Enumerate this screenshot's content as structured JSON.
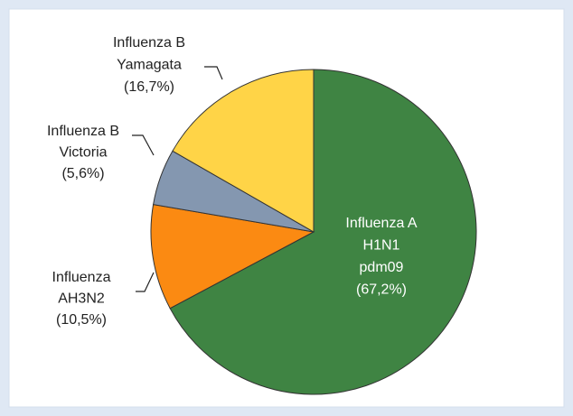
{
  "chart_data": {
    "type": "pie",
    "categories": [
      [
        "Influenza A",
        "H1N1",
        "pdm09"
      ],
      [
        "Influenza",
        "AH3N2"
      ],
      [
        "Influenza B",
        "Victoria"
      ],
      [
        "Influenza B",
        "Yamagata"
      ]
    ],
    "values": [
      67.2,
      10.5,
      5.6,
      16.7
    ],
    "value_labels": [
      "(67,2%)",
      "(10,5%)",
      "(5,6%)",
      "(16,7%)"
    ],
    "colors": [
      "#3f8443",
      "#fb8a12",
      "#8497b0",
      "#ffd447"
    ]
  }
}
